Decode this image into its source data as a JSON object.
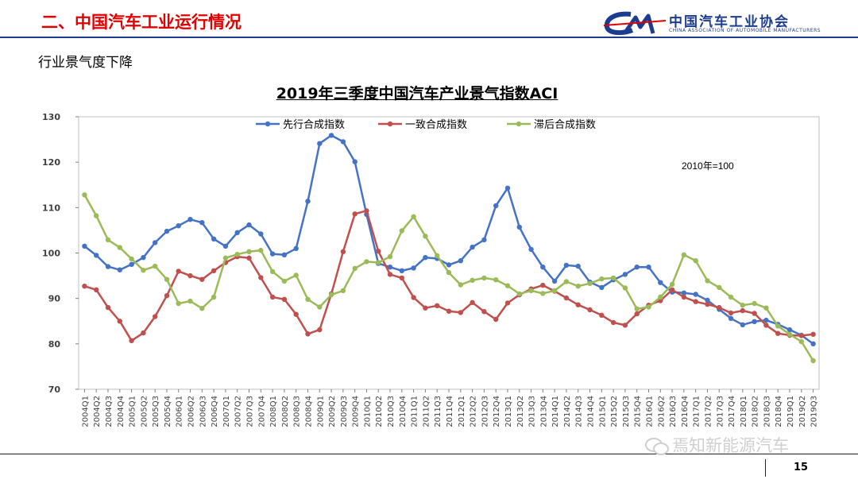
{
  "header": {
    "title": "二、中国汽车工业运行情况",
    "logo_cn": "中国汽车工业协会",
    "logo_en": "CHINA ASSOCIATION OF AUTOMOBILE MANUFACTURERS",
    "accent_color": "#e00000",
    "brand_color": "#1c3d8f"
  },
  "subtitle": "行业景气度下降",
  "chart_data": {
    "type": "line",
    "title": "2019年三季度中国汽车产业景气指数ACI",
    "annotation": "2010年=100",
    "ylim": [
      70,
      130
    ],
    "yticks": [
      70,
      80,
      90,
      100,
      110,
      120,
      130
    ],
    "grid": false,
    "legend_position": "top",
    "categories": [
      "2004Q1",
      "2004Q2",
      "2004Q3",
      "2004Q4",
      "2005Q1",
      "2005Q2",
      "2005Q3",
      "2005Q4",
      "2006Q1",
      "2006Q2",
      "2006Q3",
      "2006Q4",
      "2007Q1",
      "2007Q2",
      "2007Q3",
      "2007Q4",
      "2008Q1",
      "2008Q2",
      "2008Q3",
      "2008Q4",
      "2009Q1",
      "2009Q2",
      "2009Q3",
      "2009Q4",
      "2010Q1",
      "2010Q2",
      "2010Q3",
      "2010Q4",
      "2011Q1",
      "2011Q2",
      "2011Q3",
      "2011Q4",
      "2012Q1",
      "2012Q2",
      "2012Q3",
      "2012Q4",
      "2013Q1",
      "2013Q2",
      "2013Q3",
      "2013Q4",
      "2014Q1",
      "2014Q2",
      "2014Q3",
      "2014Q4",
      "2015Q1",
      "2015Q2",
      "2015Q3",
      "2015Q4",
      "2016Q1",
      "2016Q2",
      "2016Q3",
      "2016Q4",
      "2017Q1",
      "2017Q2",
      "2017Q3",
      "2017Q4",
      "2018Q1",
      "2018Q2",
      "2018Q3",
      "2018Q4",
      "2019Q1",
      "2019Q2",
      "2019Q3"
    ],
    "series": [
      {
        "name": "先行合成指数",
        "color": "#4472c4",
        "values": [
          101.5,
          99.5,
          97,
          96.3,
          97.5,
          99,
          102.3,
          104.8,
          106,
          107.4,
          106.7,
          103.1,
          101.5,
          104.5,
          106.2,
          104.2,
          99.8,
          99.6,
          101,
          111.4,
          124.1,
          125.9,
          124.5,
          120.1,
          108.5,
          97.7,
          96.9,
          96.1,
          96.7,
          99,
          98.8,
          97.4,
          98.3,
          101.3,
          102.9,
          110.4,
          114.3,
          105.7,
          100.8,
          96.9,
          93.8,
          97.3,
          97.1,
          93.6,
          92.4,
          94.1,
          95.3,
          96.9,
          96.9,
          93.5,
          91.4,
          91.2,
          90.9,
          89.6,
          87.6,
          85.6,
          84.2,
          84.9,
          85.2,
          84.3,
          83.1,
          81.9,
          80
        ]
      },
      {
        "name": "一致合成指数",
        "color": "#c0504d",
        "values": [
          92.7,
          91.9,
          88,
          85,
          80.7,
          82.4,
          86,
          90.6,
          96,
          95,
          94.2,
          96.1,
          97.9,
          99.2,
          98.9,
          94.6,
          90.3,
          89.8,
          86.5,
          82.2,
          83.1,
          91,
          100.3,
          108.6,
          109.3,
          100.4,
          95.3,
          94.5,
          90.2,
          87.9,
          88.4,
          87.2,
          86.9,
          89.1,
          87.1,
          85.4,
          89,
          90.8,
          92.1,
          92.9,
          91.6,
          90.1,
          88.6,
          87.5,
          86.3,
          84.7,
          84.1,
          86.6,
          88.5,
          89.5,
          91.9,
          90.3,
          89.3,
          88.7,
          88,
          86.8,
          87.3,
          86.7,
          84.1,
          82.3,
          81.9,
          81.8,
          82.1
        ]
      },
      {
        "name": "滞后合成指数",
        "color": "#9bbb59",
        "values": [
          112.8,
          108.2,
          102.9,
          101.2,
          98.7,
          96.2,
          97.1,
          94.2,
          88.9,
          89.4,
          87.8,
          90.3,
          98.9,
          99.7,
          100.3,
          100.6,
          95.9,
          93.8,
          95.1,
          89.8,
          88.1,
          90.8,
          91.7,
          96.6,
          98.1,
          97.9,
          99.2,
          104.9,
          108,
          103.7,
          99.4,
          95.7,
          93,
          94,
          94.5,
          94.1,
          92.8,
          91,
          91.7,
          91.1,
          91.7,
          93.7,
          92.7,
          93.3,
          94.3,
          94.5,
          92.3,
          87.7,
          88.1,
          90.3,
          93.1,
          99.6,
          98.3,
          93.9,
          92.4,
          90.3,
          88.5,
          88.9,
          87.9,
          83.9,
          82.1,
          80.5,
          76.3
        ]
      }
    ]
  },
  "watermark": "焉知新能源汽车",
  "page_number": "15"
}
